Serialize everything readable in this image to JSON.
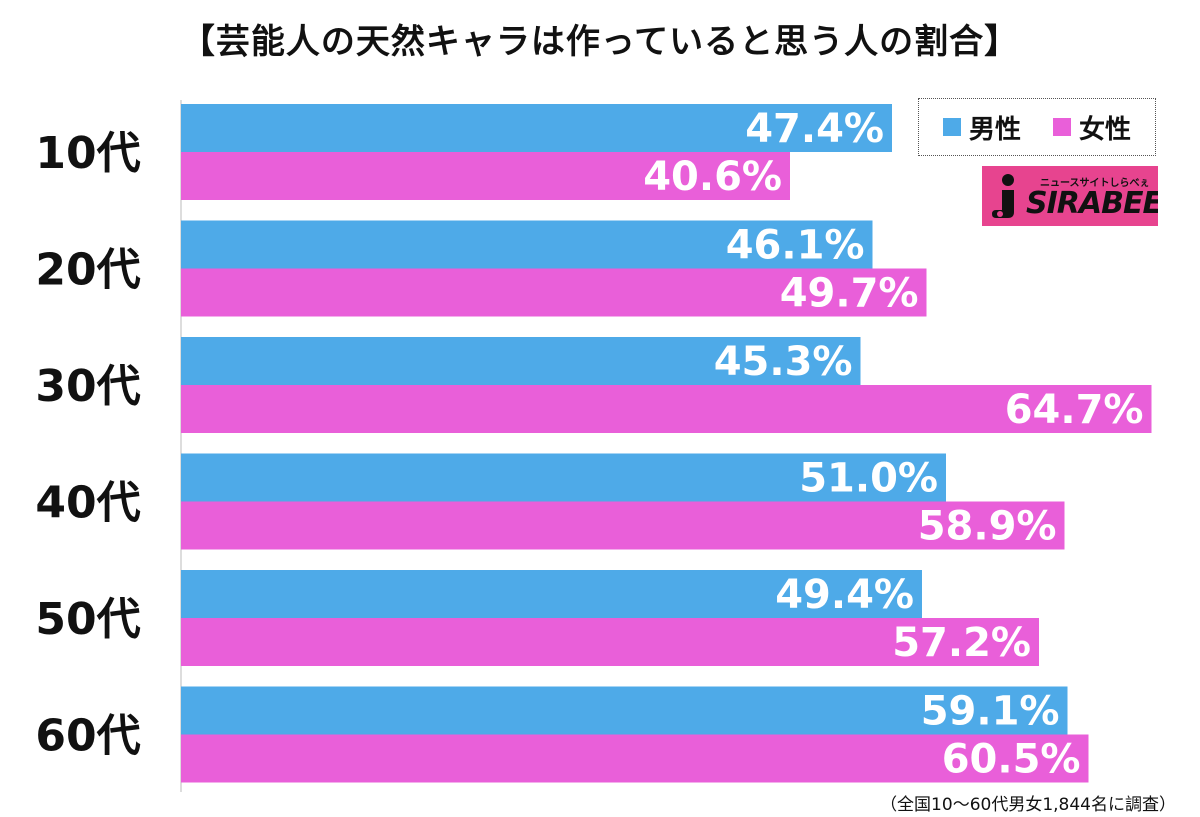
{
  "chart_data": {
    "type": "bar",
    "orientation": "horizontal",
    "title": "【芸能人の天然キャラは作っていると思う人の割合】",
    "categories": [
      "10代",
      "20代",
      "30代",
      "40代",
      "50代",
      "60代"
    ],
    "series": [
      {
        "name": "男性",
        "values": [
          47.4,
          46.1,
          45.3,
          51.0,
          49.4,
          59.1
        ],
        "color": "#4eaae8"
      },
      {
        "name": "女性",
        "values": [
          40.6,
          49.7,
          64.7,
          58.9,
          57.2,
          60.5
        ],
        "color": "#e95fd9"
      }
    ],
    "value_labels": {
      "男性": [
        "47.4%",
        "46.1%",
        "45.3%",
        "51.0%",
        "49.4%",
        "59.1%"
      ],
      "女性": [
        "40.6%",
        "49.7%",
        "64.7%",
        "58.9%",
        "57.2%",
        "60.5%"
      ]
    },
    "unit": "%",
    "xlim": [
      0,
      65
    ],
    "grid": false,
    "legend_position": "top-right",
    "source_note": "（全国10〜60代男女1,844名に調査）"
  },
  "logo": {
    "text": "SIRABEE",
    "tagline": "ニュースサイトしらべぇ",
    "mark": "i",
    "color": "#e7448f"
  }
}
